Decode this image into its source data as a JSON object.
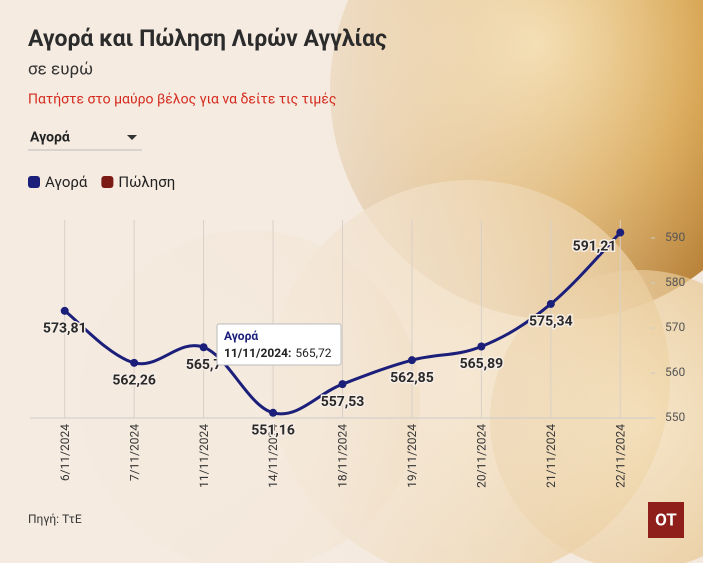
{
  "title": "Αγορά και Πώληση Λιρών Αγγλίας",
  "subtitle": "σε ευρώ",
  "instruction": "Πατήστε στο μαύρο βέλος για να δείτε τις τιμές",
  "dropdown": {
    "selected": "Αγορά"
  },
  "source": "Πηγή: ΤτΕ",
  "logo": "OT",
  "chart_data": {
    "type": "line",
    "categories": [
      "6/11/2024",
      "7/11/2024",
      "11/11/2024",
      "14/11/2024",
      "18/11/2024",
      "19/11/2024",
      "20/11/2024",
      "21/11/2024",
      "22/11/2024"
    ],
    "series": [
      {
        "name": "Αγορά",
        "color": "#1b1f7a",
        "values": [
          573.81,
          562.26,
          565.72,
          551.16,
          557.53,
          562.85,
          565.89,
          575.34,
          591.21
        ],
        "value_labels": [
          "573,81",
          "562,26",
          "565,7",
          "551,16",
          "557,53",
          "562,85",
          "565,89",
          "575,34",
          "591,21"
        ]
      },
      {
        "name": "Πώληση",
        "color": "#7a1a12",
        "values": [
          null,
          null,
          null,
          null,
          null,
          null,
          null,
          null,
          null
        ]
      }
    ],
    "ylim": [
      550,
      594
    ],
    "yticks": [
      550,
      560,
      570,
      580,
      590
    ],
    "grid": true,
    "tooltip": {
      "series_label": "Αγορά",
      "category_label": "11/11/2024:",
      "value_label": "565,72"
    }
  }
}
